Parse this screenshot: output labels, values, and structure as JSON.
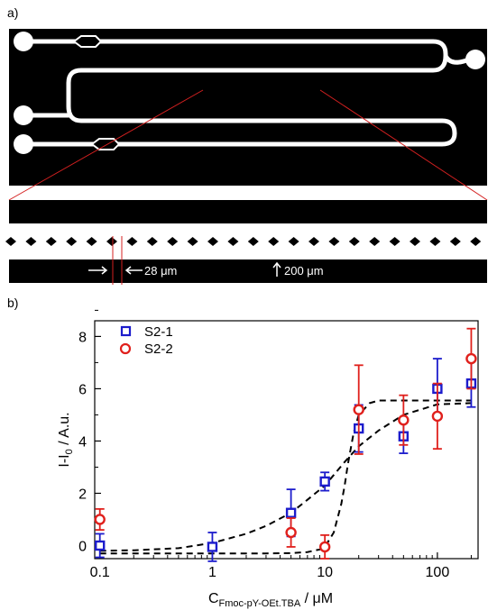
{
  "panel_a": {
    "label": "a)",
    "scale_labels": {
      "gap": "28 μm",
      "channel": "200 μm"
    }
  },
  "panel_b": {
    "label": "b)"
  },
  "colors": {
    "S2-1": "#1c1ccc",
    "S2-2": "#e0201c",
    "fit": "#000000"
  },
  "chart_data": {
    "type": "scatter",
    "xlabel": "C",
    "xlabel_sub": "Fmoc-pY-OEt.TBA",
    "xlabel_unit": " / μM",
    "ylabel": "I-I",
    "ylabel_sub": "0",
    "ylabel_unit": " / A.u.",
    "xscale": "log",
    "xlim": [
      0.09,
      230
    ],
    "ylim": [
      -0.5,
      8.6
    ],
    "xticks": [
      0.1,
      1,
      10,
      100
    ],
    "xtick_labels": [
      "0.1",
      "1",
      "10",
      "100"
    ],
    "yticks": [
      0,
      2,
      4,
      6,
      8
    ],
    "ytick_labels": [
      "0",
      "2",
      "4",
      "6",
      "8"
    ],
    "legend_position": "top-left",
    "series": [
      {
        "name": "S2-1",
        "marker": "square",
        "x": [
          0.1,
          1,
          5,
          10,
          20,
          50,
          100,
          200
        ],
        "y": [
          0.0,
          -0.05,
          1.25,
          2.45,
          4.48,
          4.18,
          6.0,
          6.2
        ],
        "err": [
          0.45,
          0.55,
          0.9,
          0.35,
          0.9,
          0.65,
          1.15,
          0.9
        ]
      },
      {
        "name": "S2-2",
        "marker": "circle",
        "x": [
          0.1,
          5,
          10,
          20,
          50,
          100,
          200
        ],
        "y": [
          1.0,
          0.5,
          -0.05,
          5.2,
          4.8,
          4.95,
          7.15
        ],
        "err": [
          0.4,
          0.55,
          0.45,
          1.7,
          0.95,
          1.25,
          1.15
        ]
      }
    ],
    "fit_curves": [
      {
        "x": [
          0.1,
          0.2,
          0.5,
          1,
          2,
          3,
          5,
          7,
          10,
          12,
          15,
          20,
          30,
          50,
          100,
          200
        ],
        "y": [
          -0.2,
          -0.18,
          -0.1,
          0.1,
          0.45,
          0.75,
          1.25,
          1.75,
          2.3,
          2.7,
          3.2,
          3.8,
          4.4,
          5.0,
          5.4,
          5.45
        ]
      },
      {
        "x": [
          0.1,
          1,
          3,
          5,
          7,
          9,
          10,
          12,
          14,
          15,
          16,
          18,
          20,
          25,
          30,
          50,
          100,
          200
        ],
        "y": [
          -0.3,
          -0.3,
          -0.3,
          -0.29,
          -0.25,
          -0.15,
          -0.05,
          0.5,
          1.6,
          2.3,
          3.1,
          4.3,
          5.0,
          5.45,
          5.55,
          5.55,
          5.55,
          5.55
        ]
      }
    ]
  }
}
